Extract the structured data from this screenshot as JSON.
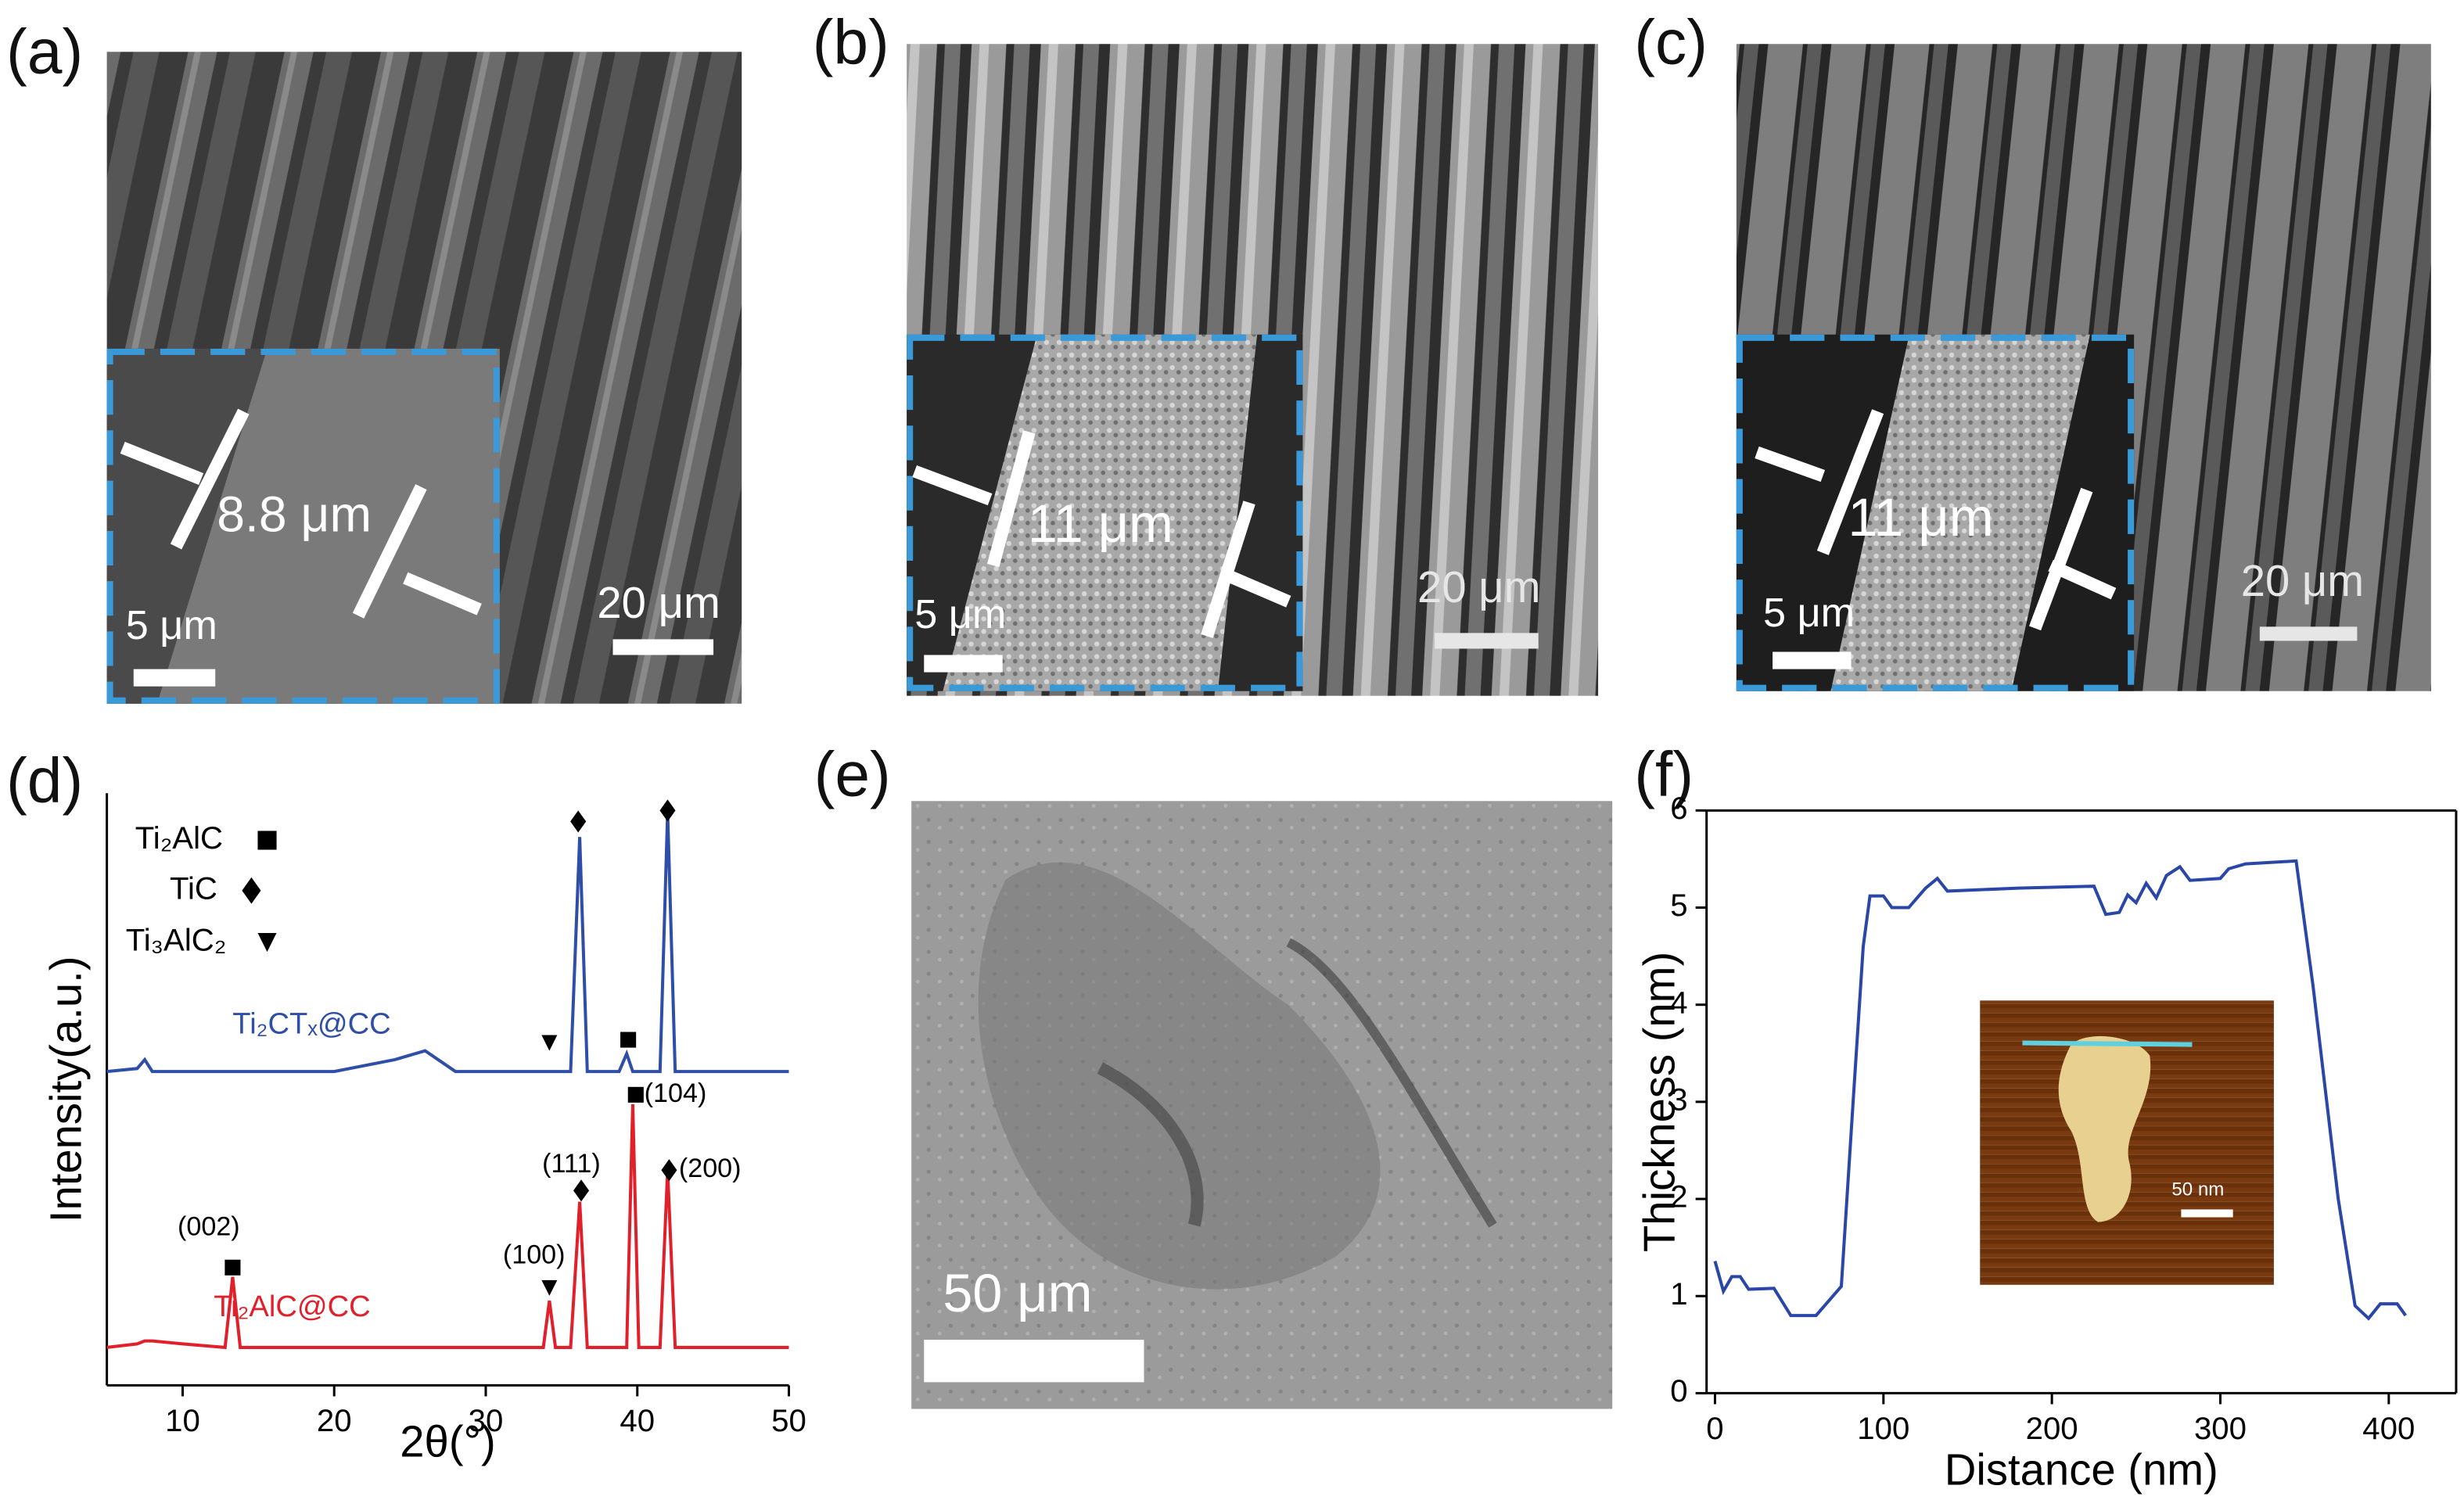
{
  "panels": {
    "a": {
      "label": "(a)",
      "measurement": "8.8 μm",
      "inset_scale": "5 μm",
      "scale": "20 μm"
    },
    "b": {
      "label": "(b)",
      "measurement": "11 μm",
      "inset_scale": "5 μm",
      "scale": "20 μm"
    },
    "c": {
      "label": "(c)",
      "measurement": "11 μm",
      "inset_scale": "5 μm",
      "scale": "20 μm"
    },
    "d": {
      "label": "(d)"
    },
    "e": {
      "label": "(e)",
      "scale": "50 μm"
    },
    "f": {
      "label": "(f)",
      "inset_scale": "50 nm"
    }
  },
  "chart_data": [
    {
      "type": "line",
      "xlabel": "2θ(°)",
      "ylabel": "Intensity(a.u.)",
      "x": [
        5,
        7,
        7.5,
        8,
        10,
        12.8,
        13.3,
        13.8,
        20,
        24,
        26,
        28,
        33,
        33.8,
        34.2,
        34.6,
        35.6,
        36.2,
        36.7,
        38.8,
        39.3,
        39.7,
        40.1,
        41.5,
        42,
        42.5,
        45,
        50
      ],
      "xlim": [
        5,
        50
      ],
      "xticks": [
        10,
        20,
        30,
        40,
        50
      ],
      "ylim": [
        0,
        100
      ],
      "series": [
        {
          "name": "Ti₂CTₓ@CC",
          "color": "#2f4ea8",
          "values": [
            53,
            53.5,
            55,
            53,
            53,
            53,
            53,
            53,
            53,
            55,
            56.5,
            53,
            53,
            53,
            53,
            53,
            53,
            92.6,
            53,
            53,
            56,
            53,
            53,
            53,
            96.8,
            53,
            53,
            53
          ]
        },
        {
          "name": "Ti₂AlC@CC",
          "color": "#e0202a",
          "values": [
            6.4,
            7,
            7.5,
            7.5,
            7,
            6.4,
            18.3,
            6.4,
            6.4,
            6.4,
            6.4,
            6.4,
            6.4,
            6.4,
            14.3,
            6.4,
            6.4,
            31,
            6.4,
            6.4,
            6.4,
            47.5,
            6.4,
            6.4,
            36.3,
            6.4,
            6.4,
            6.4
          ]
        }
      ],
      "phases": [
        "Ti₂AlC",
        "TiC",
        "Ti₃AlC₂"
      ],
      "peak_labels": [
        "(002)",
        "(100)",
        "(111)",
        "(104)",
        "(200)"
      ]
    },
    {
      "type": "line",
      "xlabel": "Distance (nm)",
      "ylabel": "Thickness (nm)",
      "x": [
        0,
        5,
        10,
        15,
        20,
        35,
        45,
        60,
        75,
        82,
        88,
        92,
        100,
        105,
        115,
        125,
        132,
        138,
        180,
        225,
        232,
        240,
        245,
        250,
        256,
        262,
        268,
        276,
        282,
        300,
        305,
        315,
        345,
        355,
        370,
        380,
        388,
        395,
        405,
        410
      ],
      "xlim": [
        -5,
        440
      ],
      "xticks": [
        0,
        100,
        200,
        300,
        400
      ],
      "ylim": [
        0,
        6
      ],
      "yticks": [
        0,
        1,
        2,
        3,
        4,
        5,
        6
      ],
      "series": [
        {
          "name": "Thickness",
          "color": "#2a46a6",
          "values": [
            1.36,
            1.05,
            1.2,
            1.2,
            1.07,
            1.08,
            0.8,
            0.8,
            1.1,
            3.0,
            4.6,
            5.12,
            5.12,
            5.0,
            5.0,
            5.2,
            5.3,
            5.17,
            5.2,
            5.22,
            4.93,
            4.95,
            5.13,
            5.05,
            5.25,
            5.1,
            5.33,
            5.42,
            5.28,
            5.3,
            5.4,
            5.45,
            5.48,
            4.2,
            2.0,
            0.9,
            0.77,
            0.92,
            0.92,
            0.8
          ]
        }
      ]
    }
  ]
}
